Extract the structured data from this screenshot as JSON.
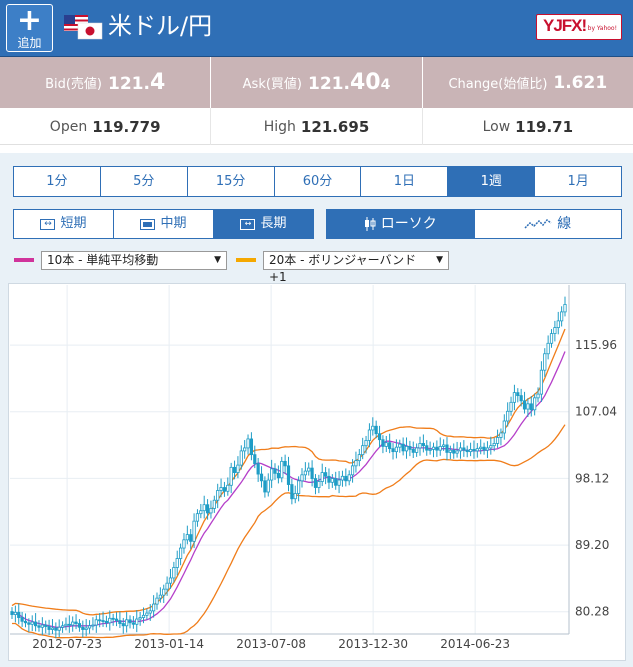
{
  "header": {
    "add_label": "追加",
    "title": "米ドル/円",
    "logo_text": "YJFX!",
    "logo_sub": "by Yahoo!"
  },
  "quotes": {
    "bid_label": "Bid(売値)",
    "bid_int": "121.",
    "bid_big": "4",
    "bid_small": "",
    "ask_label": "Ask(買値)",
    "ask_int": "121.",
    "ask_big": "40",
    "ask_small": "4",
    "change_label": "Change(始値比)",
    "change_value": "1.621"
  },
  "ohl": {
    "open_label": "Open",
    "open_int": "119.77",
    "open_small": "9",
    "high_label": "High",
    "high_int": "121.69",
    "high_small": "5",
    "low_label": "Low",
    "low_int": "119.71",
    "low_small": ""
  },
  "timeframes": [
    "1分",
    "5分",
    "15分",
    "60分",
    "1日",
    "1週",
    "1月"
  ],
  "timeframe_selected": "1週",
  "ranges": [
    "短期",
    "中期",
    "長期"
  ],
  "range_selected": "長期",
  "chart_types": [
    "ローソク",
    "線"
  ],
  "chart_type_selected": "ローソク",
  "indicators": [
    {
      "color": "#d0339b",
      "label": "10本 - 単純平均移動"
    },
    {
      "color": "#f5a800",
      "label": "20本 - ボリンジャーバンド+1"
    }
  ],
  "colors": {
    "accent": "#2f6fb6",
    "quote_bar": "#c9b4b6",
    "candle": "#1f9dc6",
    "ma10": "#b53fc9",
    "bollinger": "#f07d1a"
  },
  "chart_data": {
    "type": "candlestick",
    "x_ticks": [
      "2012-07-23",
      "2013-01-14",
      "2013-07-08",
      "2013-12-30",
      "2014-06-23"
    ],
    "y_ticks": [
      80.28,
      89.2,
      98.12,
      107.04,
      115.96
    ],
    "ylim": [
      77.3,
      124.0
    ],
    "x_range": [
      "2012-04-16",
      "2014-12-01"
    ],
    "close_series": [
      79.9,
      80.2,
      79.5,
      79.0,
      78.8,
      78.6,
      78.9,
      78.4,
      78.2,
      78.5,
      78.3,
      77.9,
      78.1,
      77.8,
      78.2,
      78.4,
      78.6,
      78.5,
      78.9,
      78.7,
      78.2,
      77.9,
      78.1,
      78.4,
      78.5,
      79.2,
      79.1,
      79.0,
      78.8,
      79.4,
      79.3,
      79.1,
      78.7,
      78.4,
      79.2,
      78.8,
      78.6,
      79.3,
      79.5,
      79.8,
      80.1,
      80.4,
      81.3,
      82.1,
      82.5,
      83.3,
      84.1,
      84.8,
      86.2,
      87.4,
      88.8,
      89.9,
      90.6,
      89.7,
      92.4,
      93.4,
      93.8,
      94.6,
      93.5,
      94.1,
      95.2,
      96.5,
      96.9,
      96.4,
      97.2,
      99.6,
      98.9,
      99.9,
      101.8,
      102.2,
      103.4,
      101.3,
      100.1,
      98.7,
      97.8,
      96.3,
      97.9,
      99.4,
      98.8,
      98.2,
      100.4,
      99.8,
      97.3,
      95.4,
      96.1,
      97.8,
      98.6,
      99.1,
      99.5,
      98.1,
      96.9,
      97.7,
      98.9,
      98.4,
      97.6,
      98.1,
      97.2,
      97.9,
      98.4,
      97.8,
      98.6,
      99.8,
      100.5,
      101.3,
      102.5,
      103.2,
      104.6,
      105.1,
      104.1,
      103.3,
      102.4,
      102.9,
      102.1,
      101.7,
      102.3,
      102.7,
      101.8,
      102.4,
      102.0,
      101.6,
      102.2,
      102.8,
      102.5,
      101.9,
      102.0,
      102.3,
      101.9,
      102.4,
      102.6,
      101.6,
      101.9,
      101.5,
      101.8,
      102.2,
      101.9,
      101.7,
      102.0,
      101.8,
      102.1,
      102.3,
      101.9,
      102.2,
      102.5,
      102.8,
      103.6,
      104.2,
      105.8,
      107.1,
      108.3,
      109.6,
      109.2,
      108.5,
      107.4,
      108.1,
      107.3,
      108.9,
      109.4,
      112.6,
      114.8,
      116.2,
      117.5,
      118.3,
      119.2,
      120.4,
      121.4
    ],
    "ma10_series": [
      80.2,
      80.1,
      79.9,
      79.6,
      79.3,
      79.1,
      79.0,
      78.8,
      78.7,
      78.6,
      78.5,
      78.4,
      78.3,
      78.2,
      78.2,
      78.2,
      78.3,
      78.3,
      78.4,
      78.4,
      78.4,
      78.4,
      78.4,
      78.4,
      78.4,
      78.5,
      78.6,
      78.7,
      78.7,
      78.8,
      78.9,
      79.0,
      79.0,
      79.0,
      79.0,
      79.0,
      79.0,
      79.0,
      79.0,
      79.1,
      79.2,
      79.4,
      79.7,
      80.0,
      80.4,
      80.8,
      81.4,
      82.0,
      82.8,
      83.6,
      84.5,
      85.4,
      86.3,
      87.2,
      88.2,
      89.1,
      90.0,
      90.8,
      91.4,
      92.1,
      92.8,
      93.5,
      94.2,
      94.8,
      95.2,
      95.8,
      96.4,
      97.0,
      97.6,
      98.3,
      99.0,
      99.6,
      100.0,
      100.2,
      100.1,
      99.9,
      99.7,
      99.5,
      99.4,
      99.2,
      99.0,
      98.8,
      98.5,
      98.2,
      98.0,
      97.9,
      97.8,
      97.7,
      97.6,
      97.6,
      97.7,
      97.9,
      98.1,
      98.2,
      98.3,
      98.2,
      98.1,
      98.0,
      98.0,
      98.0,
      98.1,
      98.3,
      98.6,
      99.0,
      99.5,
      100.0,
      100.6,
      101.2,
      101.8,
      102.3,
      102.8,
      103.1,
      103.1,
      103.0,
      102.9,
      102.8,
      102.6,
      102.5,
      102.3,
      102.2,
      102.2,
      102.2,
      102.2,
      102.2,
      102.1,
      102.1,
      102.1,
      102.1,
      102.1,
      102.1,
      102.1,
      102.0,
      102.0,
      101.9,
      101.9,
      101.9,
      101.8,
      101.8,
      101.8,
      101.8,
      101.9,
      101.9,
      102.0,
      102.0,
      102.1,
      102.3,
      102.5,
      102.9,
      103.4,
      104.0,
      104.7,
      105.4,
      106.0,
      106.6,
      107.1,
      107.6,
      108.0,
      108.5,
      109.2,
      110.1,
      111.0,
      112.0,
      113.0,
      114.0,
      115.1
    ]
  }
}
